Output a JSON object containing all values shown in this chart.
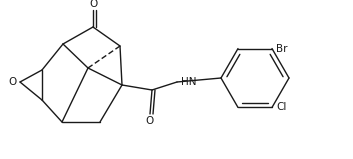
{
  "background_color": "#ffffff",
  "line_color": "#1a1a1a",
  "figsize": [
    3.53,
    1.59
  ],
  "dpi": 100,
  "labels": {
    "O_ketone": "O",
    "O_epoxide": "O",
    "HN": "HN",
    "O_amide": "O",
    "Br": "Br",
    "Cl": "Cl"
  }
}
